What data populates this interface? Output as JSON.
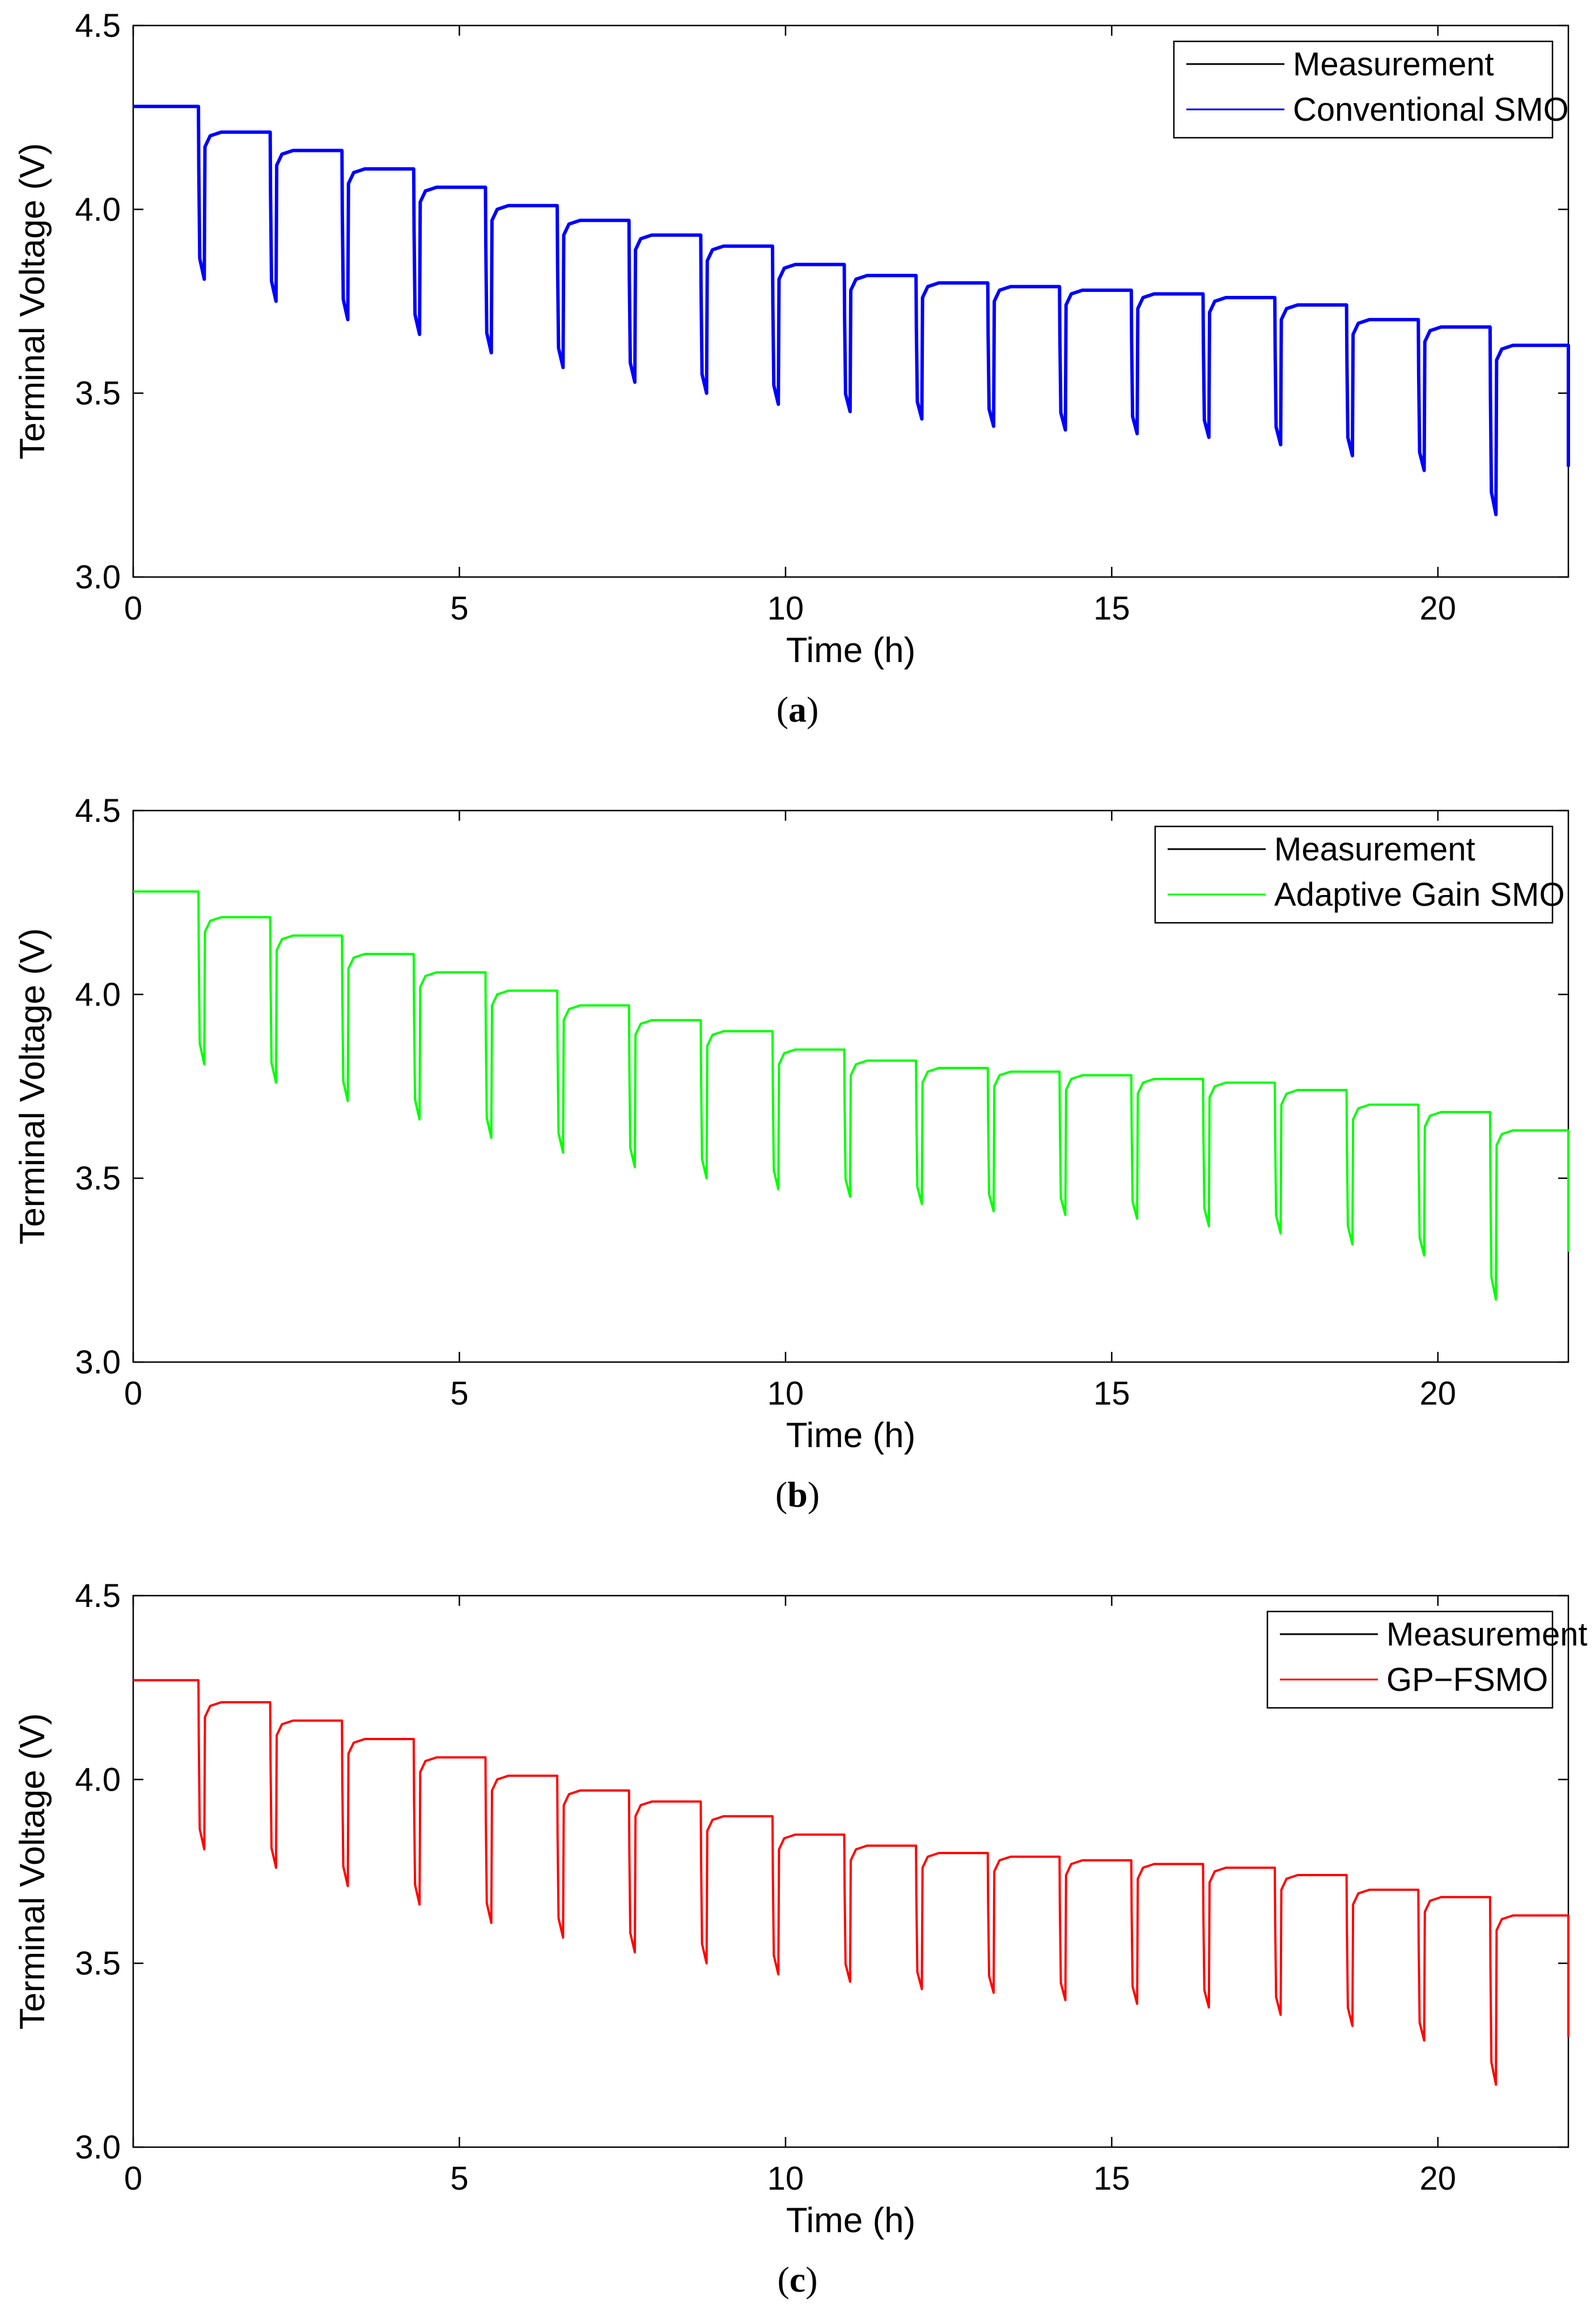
{
  "figure": {
    "panels": [
      {
        "caption_letter": "a",
        "legend": [
          "Measurement",
          "Conventional SMO"
        ]
      },
      {
        "caption_letter": "b",
        "legend": [
          "Measurement",
          "Adaptive Gain SMO"
        ]
      },
      {
        "caption_letter": "c",
        "legend": [
          "Measurement",
          "GP−FSMO"
        ]
      }
    ]
  },
  "chart_data": [
    {
      "type": "line",
      "xlabel": "Time (h)",
      "ylabel": "Terminal Voltage (V)",
      "xlim": [
        0,
        22
      ],
      "ylim": [
        3.0,
        4.5
      ],
      "xticks": [
        "0",
        "5",
        "10",
        "15",
        "20"
      ],
      "yticks": [
        "3.0",
        "3.5",
        "4.0",
        "4.5"
      ],
      "grid": false,
      "legend_position": "top-right",
      "pulse_times_h": [
        1.0,
        2.1,
        3.2,
        4.3,
        5.4,
        6.5,
        7.6,
        8.7,
        9.8,
        10.9,
        12.0,
        13.1,
        14.2,
        15.3,
        16.4,
        17.5,
        18.6,
        19.7,
        20.8,
        22.0
      ],
      "rest_voltages": [
        4.28,
        4.21,
        4.16,
        4.11,
        4.06,
        4.01,
        3.97,
        3.93,
        3.9,
        3.85,
        3.82,
        3.8,
        3.79,
        3.78,
        3.77,
        3.76,
        3.74,
        3.7,
        3.68,
        3.63
      ],
      "pulse_min_voltages": [
        3.81,
        3.75,
        3.7,
        3.66,
        3.61,
        3.57,
        3.53,
        3.5,
        3.47,
        3.45,
        3.43,
        3.41,
        3.4,
        3.39,
        3.38,
        3.36,
        3.33,
        3.29,
        3.17,
        3.3
      ],
      "series": [
        {
          "name": "Measurement",
          "color": "#000000"
        },
        {
          "name": "Conventional SMO",
          "color": "#0000ff"
        }
      ]
    },
    {
      "type": "line",
      "xlabel": "Time (h)",
      "ylabel": "Terminal Voltage (V)",
      "xlim": [
        0,
        22
      ],
      "ylim": [
        3.0,
        4.5
      ],
      "xticks": [
        "0",
        "5",
        "10",
        "15",
        "20"
      ],
      "yticks": [
        "3.0",
        "3.5",
        "4.0",
        "4.5"
      ],
      "grid": false,
      "legend_position": "top-right",
      "pulse_times_h": [
        1.0,
        2.1,
        3.2,
        4.3,
        5.4,
        6.5,
        7.6,
        8.7,
        9.8,
        10.9,
        12.0,
        13.1,
        14.2,
        15.3,
        16.4,
        17.5,
        18.6,
        19.7,
        20.8,
        22.0
      ],
      "rest_voltages": [
        4.28,
        4.21,
        4.16,
        4.11,
        4.06,
        4.01,
        3.97,
        3.93,
        3.9,
        3.85,
        3.82,
        3.8,
        3.79,
        3.78,
        3.77,
        3.76,
        3.74,
        3.7,
        3.68,
        3.63
      ],
      "pulse_min_voltages": [
        3.81,
        3.76,
        3.71,
        3.66,
        3.61,
        3.57,
        3.53,
        3.5,
        3.47,
        3.45,
        3.43,
        3.41,
        3.4,
        3.39,
        3.37,
        3.35,
        3.32,
        3.29,
        3.17,
        3.3
      ],
      "series": [
        {
          "name": "Measurement",
          "color": "#000000"
        },
        {
          "name": "Adaptive Gain SMO",
          "color": "#00ff00"
        }
      ]
    },
    {
      "type": "line",
      "xlabel": "Time (h)",
      "ylabel": "Terminal Voltage (V)",
      "xlim": [
        0,
        22
      ],
      "ylim": [
        3.0,
        4.5
      ],
      "xticks": [
        "0",
        "5",
        "10",
        "15",
        "20"
      ],
      "yticks": [
        "3.0",
        "3.5",
        "4.0",
        "4.5"
      ],
      "grid": false,
      "legend_position": "top-right",
      "pulse_times_h": [
        1.0,
        2.1,
        3.2,
        4.3,
        5.4,
        6.5,
        7.6,
        8.7,
        9.8,
        10.9,
        12.0,
        13.1,
        14.2,
        15.3,
        16.4,
        17.5,
        18.6,
        19.7,
        20.8,
        22.0
      ],
      "rest_voltages": [
        4.27,
        4.21,
        4.16,
        4.11,
        4.06,
        4.01,
        3.97,
        3.94,
        3.9,
        3.85,
        3.82,
        3.8,
        3.79,
        3.78,
        3.77,
        3.76,
        3.74,
        3.7,
        3.68,
        3.63
      ],
      "pulse_min_voltages": [
        3.81,
        3.76,
        3.71,
        3.66,
        3.61,
        3.57,
        3.53,
        3.5,
        3.47,
        3.45,
        3.43,
        3.42,
        3.4,
        3.39,
        3.38,
        3.36,
        3.33,
        3.29,
        3.17,
        3.3
      ],
      "series": [
        {
          "name": "Measurement",
          "color": "#000000"
        },
        {
          "name": "GP−FSMO",
          "color": "#ff0000"
        }
      ]
    }
  ]
}
